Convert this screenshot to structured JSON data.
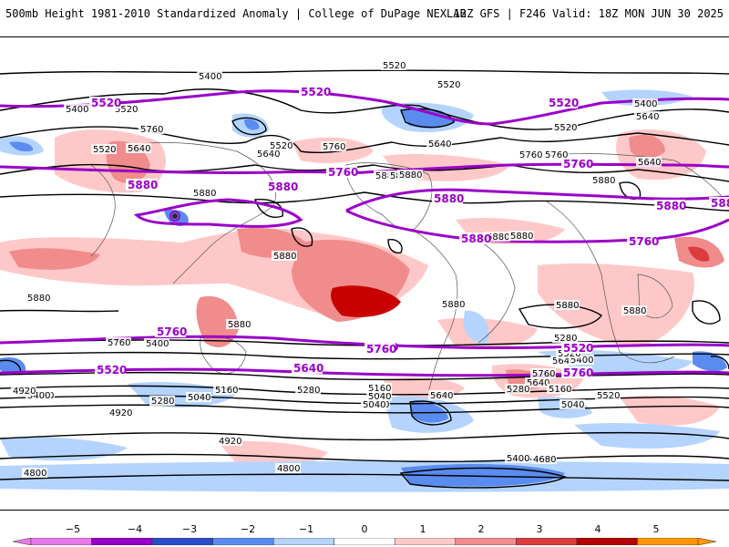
{
  "header": {
    "left": "500mb Height 1981-2010 Standardized Anomaly | College of DuPage NEXLAB",
    "right": "12Z GFS | F246 Valid: 18Z MON JUN 30 2025"
  },
  "map": {
    "contour_labels_black": [
      "5400",
      "5520",
      "5520",
      "5400",
      "5520",
      "5760",
      "5520",
      "5640",
      "5760",
      "5880",
      "5640",
      "5760",
      "5400",
      "5520",
      "5640",
      "5880",
      "5640",
      "5760",
      "5880",
      "5880",
      "5880",
      "5880",
      "5880",
      "5880",
      "5880",
      "5880",
      "5880",
      "5640",
      "5760",
      "5640",
      "5400",
      "5520",
      "5760",
      "5400",
      "5280",
      "5160",
      "5040",
      "5280",
      "5160",
      "5040",
      "5520",
      "5400",
      "5280",
      "5160",
      "5040",
      "5640",
      "5520",
      "5280",
      "5160",
      "5040",
      "4920",
      "4920",
      "4920",
      "4800",
      "4800",
      "4680",
      "5400",
      "5520",
      "5640",
      "5880",
      "5880"
    ],
    "contour_labels_purple": [
      "5520",
      "5520",
      "5520",
      "5760",
      "5760",
      "5880",
      "5880",
      "5880",
      "5880",
      "5880",
      "5760",
      "5760",
      "5520",
      "5520",
      "5520",
      "5640",
      "5760",
      "5880",
      "5760"
    ],
    "colors": {
      "neg5": "#e878e8",
      "neg4": "#9600c8",
      "neg3": "#2a4cc8",
      "neg2": "#5a8cf0",
      "neg1": "#b4d4ff",
      "zero": "#ffffff",
      "pos1": "#ffc8c8",
      "pos2": "#f08c8c",
      "pos3": "#dc3c3c",
      "pos4": "#b40000",
      "pos5": "#ff9600",
      "purple_contour": "#9a00c8"
    }
  },
  "colorbar": {
    "ticks": [
      "−5",
      "−4",
      "−3",
      "−2",
      "−1",
      "0",
      "1",
      "2",
      "3",
      "4",
      "5"
    ]
  }
}
